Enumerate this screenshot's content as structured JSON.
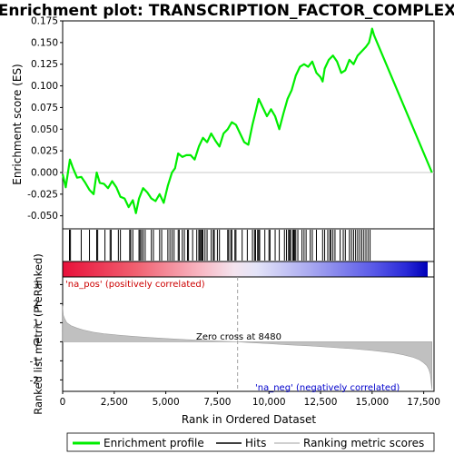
{
  "chart_data": {
    "type": "line",
    "title": "Enrichment plot: TRANSCRIPTION_FACTOR_COMPLEX",
    "xlabel": "Rank in Ordered Dataset",
    "top_panel": {
      "ylabel": "Enrichment score (ES)",
      "ylim": [
        -0.065,
        0.175
      ],
      "yticks": [
        "0.175",
        "0.150",
        "0.125",
        "0.100",
        "0.075",
        "0.050",
        "0.025",
        "0.000",
        "-0.025",
        "-0.050"
      ],
      "series": [
        {
          "name": "Enrichment profile",
          "color": "#00ee00",
          "x": [
            0,
            150,
            350,
            500,
            700,
            900,
            1100,
            1300,
            1500,
            1650,
            1800,
            2000,
            2200,
            2400,
            2600,
            2800,
            3000,
            3200,
            3400,
            3550,
            3700,
            3900,
            4100,
            4300,
            4500,
            4700,
            4900,
            5100,
            5300,
            5450,
            5600,
            5800,
            6000,
            6200,
            6400,
            6600,
            6800,
            7000,
            7200,
            7400,
            7600,
            7800,
            8000,
            8200,
            8400,
            8600,
            8800,
            9000,
            9200,
            9350,
            9500,
            9700,
            9900,
            10100,
            10300,
            10500,
            10700,
            10900,
            11100,
            11300,
            11500,
            11700,
            11900,
            12100,
            12300,
            12500,
            12600,
            12700,
            12900,
            13100,
            13300,
            13500,
            13700,
            13900,
            14100,
            14300,
            14500,
            14700,
            14850,
            14950,
            15000,
            15100,
            17900
          ],
          "y": [
            -0.002,
            -0.017,
            0.015,
            0.005,
            -0.006,
            -0.005,
            -0.012,
            -0.02,
            -0.025,
            0.0,
            -0.012,
            -0.013,
            -0.018,
            -0.01,
            -0.017,
            -0.028,
            -0.03,
            -0.04,
            -0.032,
            -0.047,
            -0.03,
            -0.018,
            -0.023,
            -0.03,
            -0.033,
            -0.025,
            -0.035,
            -0.015,
            0.0,
            0.005,
            0.022,
            0.018,
            0.02,
            0.02,
            0.015,
            0.03,
            0.04,
            0.035,
            0.045,
            0.037,
            0.03,
            0.045,
            0.05,
            0.058,
            0.055,
            0.045,
            0.035,
            0.032,
            0.055,
            0.07,
            0.085,
            0.075,
            0.065,
            0.073,
            0.065,
            0.05,
            0.068,
            0.085,
            0.095,
            0.112,
            0.122,
            0.125,
            0.122,
            0.128,
            0.115,
            0.11,
            0.105,
            0.12,
            0.13,
            0.135,
            0.128,
            0.115,
            0.118,
            0.13,
            0.125,
            0.135,
            0.14,
            0.145,
            0.15,
            0.16,
            0.166,
            0.158,
            0.0
          ]
        }
      ]
    },
    "hits": [
      330,
      380,
      900,
      1300,
      1650,
      1700,
      2050,
      2300,
      2350,
      2700,
      2800,
      3250,
      3300,
      3400,
      3700,
      3750,
      3820,
      3900,
      4000,
      4300,
      4400,
      4700,
      4800,
      5100,
      5200,
      5300,
      5400,
      5600,
      5650,
      5800,
      5900,
      6050,
      6100,
      6300,
      6500,
      6600,
      6650,
      6700,
      6750,
      6800,
      6900,
      7000,
      7200,
      7300,
      7350,
      7500,
      7600,
      8000,
      8050,
      8150,
      8200,
      8350,
      8400,
      8700,
      8950,
      9200,
      9300,
      9350,
      9450,
      9500,
      9550,
      9800,
      10000,
      10050,
      10300,
      10500,
      10750,
      10850,
      10950,
      11000,
      11050,
      11150,
      11200,
      11250,
      11300,
      11400,
      11600,
      11700,
      11800,
      12000,
      12100,
      12300,
      12600,
      12700,
      12850,
      12950,
      13000,
      13100,
      13200,
      13450,
      13600,
      13700,
      13900,
      14000,
      14100,
      14200,
      14300,
      14400,
      14500,
      14600,
      14700,
      14800,
      14900
    ],
    "bottom_panel": {
      "ylabel": "Ranked list metric (PreRanked)",
      "ylim": [
        -2.6,
        3.4
      ],
      "yticks": [
        "3",
        "2",
        "1",
        "0",
        "-1",
        "-2"
      ],
      "xticks": [
        "0",
        "2,500",
        "5,000",
        "7,500",
        "10,000",
        "12,500",
        "15,000",
        "17,500"
      ],
      "xtick_values": [
        0,
        2500,
        5000,
        7500,
        10000,
        12500,
        15000,
        17500
      ],
      "metric_x": [
        0,
        30,
        100,
        200,
        400,
        700,
        1000,
        1500,
        2000,
        3000,
        4000,
        5000,
        6000,
        7000,
        8000,
        8480,
        9000,
        10000,
        11000,
        12000,
        13000,
        14000,
        15000,
        16000,
        16500,
        17000,
        17300,
        17500,
        17650,
        17750,
        17820,
        17870,
        17900
      ],
      "metric_y": [
        1.9,
        1.4,
        1.2,
        1.0,
        0.85,
        0.72,
        0.62,
        0.5,
        0.42,
        0.32,
        0.24,
        0.17,
        0.11,
        0.06,
        0.02,
        0.0,
        -0.04,
        -0.1,
        -0.16,
        -0.22,
        -0.29,
        -0.36,
        -0.45,
        -0.58,
        -0.68,
        -0.82,
        -0.95,
        -1.1,
        -1.25,
        -1.45,
        -1.7,
        -2.2,
        -2.5
      ],
      "zero_cross_label": "Zero cross at 8480",
      "zero_cross": 8480,
      "pos_label": "'na_pos' (positively correlated)",
      "neg_label": "'na_neg' (negatively correlated)"
    },
    "xlim": [
      0,
      18000
    ],
    "legend": {
      "placement": "bottom",
      "entries": [
        "Enrichment profile",
        "Hits",
        "Ranking metric scores"
      ]
    }
  }
}
